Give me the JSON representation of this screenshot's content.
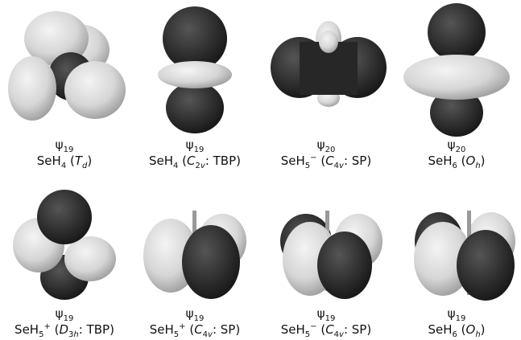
{
  "panels": [
    {
      "orbital": {
        "symbol": "ψ",
        "index": "19"
      },
      "label": [
        {
          "t": "SeH"
        },
        {
          "sub": "4"
        },
        {
          "t": " ("
        },
        {
          "i": "T"
        },
        {
          "isub": "d"
        },
        {
          "t": ")"
        }
      ]
    },
    {
      "orbital": {
        "symbol": "ψ",
        "index": "19"
      },
      "label": [
        {
          "t": "SeH"
        },
        {
          "sub": "4"
        },
        {
          "t": " ("
        },
        {
          "i": "C"
        },
        {
          "sub": "2"
        },
        {
          "isub": "v"
        },
        {
          "t": ": TBP)"
        }
      ]
    },
    {
      "orbital": {
        "symbol": "ψ",
        "index": "20"
      },
      "label": [
        {
          "t": "SeH"
        },
        {
          "sub": "5"
        },
        {
          "sup": "−"
        },
        {
          "t": " ("
        },
        {
          "i": "C"
        },
        {
          "sub": "4"
        },
        {
          "isub": "v"
        },
        {
          "t": ": SP)"
        }
      ]
    },
    {
      "orbital": {
        "symbol": "ψ",
        "index": "20"
      },
      "label": [
        {
          "t": "SeH"
        },
        {
          "sub": "6"
        },
        {
          "t": " ("
        },
        {
          "i": "O"
        },
        {
          "isub": "h"
        },
        {
          "t": ")"
        }
      ]
    },
    {
      "orbital": {
        "symbol": "ψ",
        "index": "19"
      },
      "label": [
        {
          "t": "SeH"
        },
        {
          "sub": "5"
        },
        {
          "sup": "+"
        },
        {
          "t": " ("
        },
        {
          "i": "D"
        },
        {
          "sub": "3"
        },
        {
          "isub": "h"
        },
        {
          "t": ": TBP)"
        }
      ]
    },
    {
      "orbital": {
        "symbol": "ψ",
        "index": "19"
      },
      "label": [
        {
          "t": "SeH"
        },
        {
          "sub": "5"
        },
        {
          "sup": "+"
        },
        {
          "t": " ("
        },
        {
          "i": "C"
        },
        {
          "sub": "4"
        },
        {
          "isub": "v"
        },
        {
          "t": ": SP)"
        }
      ]
    },
    {
      "orbital": {
        "symbol": "ψ",
        "index": "19"
      },
      "label": [
        {
          "t": "SeH"
        },
        {
          "sub": "5"
        },
        {
          "sup": "−"
        },
        {
          "t": " ("
        },
        {
          "i": "C"
        },
        {
          "sub": "4"
        },
        {
          "isub": "v"
        },
        {
          "t": ": SP)"
        }
      ]
    },
    {
      "orbital": {
        "symbol": "ψ",
        "index": "19"
      },
      "label": [
        {
          "t": "SeH"
        },
        {
          "sub": "6"
        },
        {
          "t": " ("
        },
        {
          "i": "O"
        },
        {
          "isub": "h"
        },
        {
          "t": ")"
        }
      ]
    }
  ]
}
